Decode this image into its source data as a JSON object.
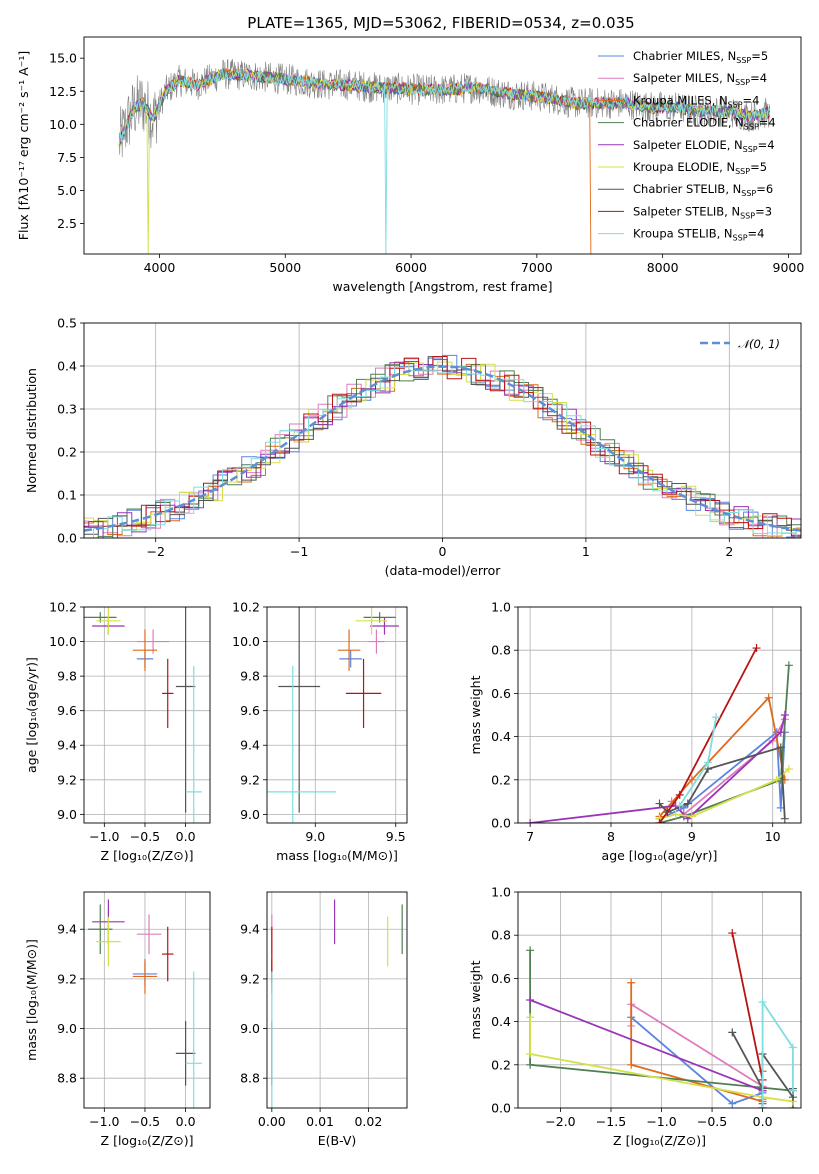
{
  "figure_title": "PLATE=1365, MJD=53062, FIBERID=0534, z=0.035",
  "models": [
    {
      "name": "Chabrier MILES, N",
      "sub": "SSP",
      "suffix": "=5",
      "color": "#5b84e0"
    },
    {
      "name": "Salpeter MILES, N",
      "sub": "SSP",
      "suffix": "=4",
      "color": "#e07bbb"
    },
    {
      "name": "Kroupa MILES, N",
      "sub": "SSP",
      "suffix": "=4",
      "color": "#e06a1c"
    },
    {
      "name": "Chabrier ELODIE, N",
      "sub": "SSP",
      "suffix": "=4",
      "color": "#4f7f52"
    },
    {
      "name": "Salpeter ELODIE, N",
      "sub": "SSP",
      "suffix": "=4",
      "color": "#9a35b8"
    },
    {
      "name": "Kroupa ELODIE, N",
      "sub": "SSP",
      "suffix": "=5",
      "color": "#d3e04a"
    },
    {
      "name": "Chabrier STELIB, N",
      "sub": "SSP",
      "suffix": "=6",
      "color": "#555555"
    },
    {
      "name": "Salpeter STELIB, N",
      "sub": "SSP",
      "suffix": "=3",
      "color": "#b81313"
    },
    {
      "name": "Kroupa STELIB, N",
      "sub": "SSP",
      "suffix": "=4",
      "color": "#7fdde0"
    }
  ],
  "chart_data": [
    {
      "id": "spectrum",
      "type": "line",
      "xlabel": "wavelength [Angstrom, rest frame]",
      "ylabel": "Flux [fλ10⁻¹⁷ erg cm⁻² s⁻¹ A⁻¹]",
      "xlim": [
        3400,
        9100
      ],
      "ylim": [
        0.2,
        16.6
      ],
      "xticks": [
        4000,
        5000,
        6000,
        7000,
        8000,
        9000
      ],
      "yticks": [
        2.5,
        5.0,
        7.5,
        10.0,
        12.5,
        15.0
      ],
      "data_color": "#808080",
      "continuum": {
        "x": [
          3680,
          3740,
          3800,
          3870,
          3950,
          4050,
          4150,
          4300,
          4500,
          4700,
          4900,
          5100,
          5300,
          5500,
          5700,
          5900,
          6100,
          6300,
          6500,
          6700,
          6900,
          7100,
          7300,
          7500,
          7700,
          7900,
          8100,
          8300,
          8500,
          8700,
          8850
        ],
        "y": [
          8.6,
          10.0,
          11.2,
          11.6,
          10.4,
          12.5,
          13.3,
          13.0,
          13.8,
          13.7,
          13.5,
          13.3,
          13.0,
          13.0,
          12.8,
          12.7,
          12.6,
          12.6,
          12.8,
          12.4,
          12.2,
          12.0,
          11.6,
          11.6,
          11.6,
          11.3,
          11.3,
          11.0,
          11.0,
          10.6,
          10.9
        ]
      }
    },
    {
      "id": "residual_hist",
      "type": "histogram",
      "xlabel": "(data-model)/error",
      "ylabel": "Normed distribution",
      "xlim": [
        -2.5,
        2.5
      ],
      "ylim": [
        0,
        0.5
      ],
      "xticks": [
        -2,
        -1,
        0,
        1,
        2
      ],
      "yticks": [
        0.0,
        0.1,
        0.2,
        0.3,
        0.4,
        0.5
      ],
      "gauss_label": "𝒩(0, 1)",
      "gauss_color": "#5b8fd6",
      "bin_width": 0.1
    },
    {
      "id": "age_vs_Z",
      "type": "scatter",
      "xlabel": "Z [log₁₀(Z/Z⊙)]",
      "ylabel": "age  [log₁₀(age/yr)]",
      "xlim": [
        -1.25,
        0.3
      ],
      "ylim": [
        8.95,
        10.2
      ],
      "xticks": [
        -1.0,
        -0.5,
        0.0
      ],
      "yticks": [
        9.0,
        9.2,
        9.4,
        9.6,
        9.8,
        10.0,
        10.2
      ],
      "points": [
        {
          "x": -0.5,
          "y": 9.9,
          "xerr": 0.1,
          "yerr": 0.05
        },
        {
          "x": -0.4,
          "y": 10.0,
          "xerr": 0.2,
          "yerr": 0.07
        },
        {
          "x": -0.5,
          "y": 9.95,
          "xerr": 0.15,
          "yerr": 0.12
        },
        {
          "x": -1.05,
          "y": 10.14,
          "xerr": 0.2,
          "yerr": 0.03
        },
        {
          "x": -0.95,
          "y": 10.09,
          "xerr": 0.2,
          "yerr": 0.05
        },
        {
          "x": -0.95,
          "y": 10.12,
          "xerr": 0.15,
          "yerr": 0.08
        },
        {
          "x": 0.0,
          "y": 9.74,
          "xerr": 0.12,
          "yerr": 0.73
        },
        {
          "x": -0.22,
          "y": 9.7,
          "xerr": 0.07,
          "yerr": 0.2
        },
        {
          "x": 0.1,
          "y": 9.13,
          "xerr": 0.1,
          "yerr": 0.73
        }
      ]
    },
    {
      "id": "age_vs_mass",
      "type": "scatter",
      "xlabel": "mass [log₁₀(M/M⊙)]",
      "ylabel": "",
      "xlim": [
        8.7,
        9.57
      ],
      "ylim": [
        8.95,
        10.2
      ],
      "xticks": [
        9.0,
        9.5
      ],
      "yticks": [
        9.0,
        9.2,
        9.4,
        9.6,
        9.8,
        10.0,
        10.2
      ],
      "points": [
        {
          "x": 9.22,
          "y": 9.9,
          "xerr": 0.07,
          "yerr": 0.05
        },
        {
          "x": 9.38,
          "y": 10.0,
          "xerr": 0.05,
          "yerr": 0.07
        },
        {
          "x": 9.21,
          "y": 9.95,
          "xerr": 0.07,
          "yerr": 0.12
        },
        {
          "x": 9.4,
          "y": 10.14,
          "xerr": 0.1,
          "yerr": 0.03
        },
        {
          "x": 9.43,
          "y": 10.09,
          "xerr": 0.09,
          "yerr": 0.05
        },
        {
          "x": 9.35,
          "y": 10.12,
          "xerr": 0.1,
          "yerr": 0.08
        },
        {
          "x": 8.9,
          "y": 9.74,
          "xerr": 0.13,
          "yerr": 0.73
        },
        {
          "x": 9.3,
          "y": 9.7,
          "xerr": 0.11,
          "yerr": 0.2
        },
        {
          "x": 8.86,
          "y": 9.13,
          "xerr": 0.27,
          "yerr": 0.73
        }
      ]
    },
    {
      "id": "mass_weight_vs_age",
      "type": "line",
      "xlabel": "age  [log₁₀(age/yr)]",
      "ylabel": "mass weight",
      "xlim": [
        6.85,
        10.35
      ],
      "ylim": [
        0,
        1
      ],
      "xticks": [
        7,
        8,
        9,
        10
      ],
      "yticks": [
        0.0,
        0.2,
        0.4,
        0.6,
        0.8,
        1.0
      ],
      "series": [
        {
          "x": [
            8.6,
            8.9,
            10.05,
            10.1,
            10.15
          ],
          "y": [
            0.02,
            0.07,
            0.42,
            0.07,
            0.42
          ]
        },
        {
          "x": [
            8.75,
            8.9,
            10.0,
            10.15
          ],
          "y": [
            0.1,
            0.04,
            0.38,
            0.48
          ]
        },
        {
          "x": [
            8.6,
            9.0,
            9.95,
            10.15
          ],
          "y": [
            0.03,
            0.2,
            0.58,
            0.2
          ]
        },
        {
          "x": [
            8.6,
            8.9,
            10.1,
            10.2
          ],
          "y": [
            0.0,
            0.03,
            0.2,
            0.73
          ]
        },
        {
          "x": [
            7.0,
            8.8,
            8.95,
            10.1,
            10.15
          ],
          "y": [
            0.0,
            0.08,
            0.02,
            0.42,
            0.5
          ]
        },
        {
          "x": [
            8.6,
            8.8,
            9.0,
            10.05,
            10.2
          ],
          "y": [
            0.02,
            0.04,
            0.03,
            0.2,
            0.25
          ]
        },
        {
          "x": [
            8.6,
            8.7,
            8.95,
            9.2,
            10.1,
            10.15
          ],
          "y": [
            0.09,
            0.05,
            0.09,
            0.25,
            0.35,
            0.02
          ]
        },
        {
          "x": [
            8.6,
            8.85,
            9.8
          ],
          "y": [
            0.0,
            0.13,
            0.81
          ]
        },
        {
          "x": [
            8.85,
            9.2,
            9.3
          ],
          "y": [
            0.08,
            0.28,
            0.49
          ]
        }
      ]
    },
    {
      "id": "mass_vs_Z",
      "type": "scatter",
      "xlabel": "Z [log₁₀(Z/Z⊙)]",
      "ylabel": "mass [log₁₀(M/M⊙)]",
      "xlim": [
        -1.25,
        0.3
      ],
      "ylim": [
        8.68,
        9.55
      ],
      "xticks": [
        -1.0,
        -0.5,
        0.0
      ],
      "yticks": [
        8.8,
        9.0,
        9.2,
        9.4
      ],
      "points": [
        {
          "x": -0.5,
          "y": 9.22,
          "xerr": 0.15,
          "yerr": 0.05
        },
        {
          "x": -0.45,
          "y": 9.38,
          "xerr": 0.15,
          "yerr": 0.08
        },
        {
          "x": -0.5,
          "y": 9.21,
          "xerr": 0.15,
          "yerr": 0.07
        },
        {
          "x": -1.05,
          "y": 9.4,
          "xerr": 0.15,
          "yerr": 0.1
        },
        {
          "x": -0.95,
          "y": 9.43,
          "xerr": 0.2,
          "yerr": 0.09
        },
        {
          "x": -0.95,
          "y": 9.35,
          "xerr": 0.15,
          "yerr": 0.1
        },
        {
          "x": 0.0,
          "y": 8.9,
          "xerr": 0.12,
          "yerr": 0.13
        },
        {
          "x": -0.22,
          "y": 9.3,
          "xerr": 0.07,
          "yerr": 0.11
        },
        {
          "x": 0.1,
          "y": 8.86,
          "xerr": 0.1,
          "yerr": 0.37
        }
      ]
    },
    {
      "id": "mass_vs_ebv",
      "type": "scatter",
      "xlabel": "E(B-V)",
      "ylabel": "",
      "xlim": [
        -0.001,
        0.028
      ],
      "ylim": [
        8.68,
        9.55
      ],
      "xticks": [
        0.0,
        0.01,
        0.02
      ],
      "xtick_labels": [
        "0.00",
        "0.01",
        "0.02"
      ],
      "yticks": [
        8.8,
        9.0,
        9.2,
        9.4
      ],
      "points": [
        {
          "x": 0.0,
          "y": 9.22,
          "yerr": 0.05
        },
        {
          "x": 0.0,
          "y": 9.38,
          "yerr": 0.08
        },
        {
          "x": 0.0,
          "y": 9.21,
          "yerr": 0.07
        },
        {
          "x": 0.027,
          "y": 9.4,
          "yerr": 0.1
        },
        {
          "x": 0.013,
          "y": 9.43,
          "yerr": 0.09
        },
        {
          "x": 0.024,
          "y": 9.35,
          "yerr": 0.1
        },
        {
          "x": 0.0,
          "y": 8.9,
          "yerr": 0.13
        },
        {
          "x": 0.0,
          "y": 9.3,
          "yerr": 0.11
        },
        {
          "x": 0.0,
          "y": 8.86,
          "yerr": 0.37
        }
      ]
    },
    {
      "id": "mass_weight_vs_Z",
      "type": "line",
      "xlabel": "Z [log₁₀(Z/Z⊙)]",
      "ylabel": "mass weight",
      "xlim": [
        -2.42,
        0.38
      ],
      "ylim": [
        0,
        1
      ],
      "xticks": [
        -2.0,
        -1.5,
        -1.0,
        -0.5,
        0.0
      ],
      "yticks": [
        0.0,
        0.2,
        0.4,
        0.6,
        0.8,
        1.0
      ],
      "series": [
        {
          "x": [
            -1.3,
            -0.3,
            0.0,
            0.0
          ],
          "y": [
            0.42,
            0.02,
            0.07,
            0.13
          ]
        },
        {
          "x": [
            -1.3,
            -1.3,
            0.0,
            0.0
          ],
          "y": [
            0.38,
            0.48,
            0.1,
            0.04
          ]
        },
        {
          "x": [
            -1.3,
            -1.3,
            0.0,
            0.0,
            0.0
          ],
          "y": [
            0.58,
            0.2,
            0.03,
            0.17,
            0.08
          ]
        },
        {
          "x": [
            -2.3,
            -2.3,
            0.3,
            0.3
          ],
          "y": [
            0.73,
            0.2,
            0.08,
            0.0
          ]
        },
        {
          "x": [
            -2.3,
            0.0,
            0.0,
            0.0
          ],
          "y": [
            0.5,
            0.08,
            0.02,
            0.0
          ]
        },
        {
          "x": [
            -2.3,
            -2.3,
            0.0,
            0.3
          ],
          "y": [
            0.42,
            0.25,
            0.05,
            0.03
          ]
        },
        {
          "x": [
            -0.3,
            0.0,
            0.0,
            0.3,
            0.3
          ],
          "y": [
            0.35,
            0.09,
            0.25,
            0.05,
            0.09
          ]
        },
        {
          "x": [
            -0.3,
            0.0,
            0.0
          ],
          "y": [
            0.81,
            0.13,
            0.0
          ]
        },
        {
          "x": [
            0.0,
            0.0,
            0.3,
            0.3
          ],
          "y": [
            0.0,
            0.49,
            0.28,
            0.08
          ]
        }
      ]
    }
  ]
}
